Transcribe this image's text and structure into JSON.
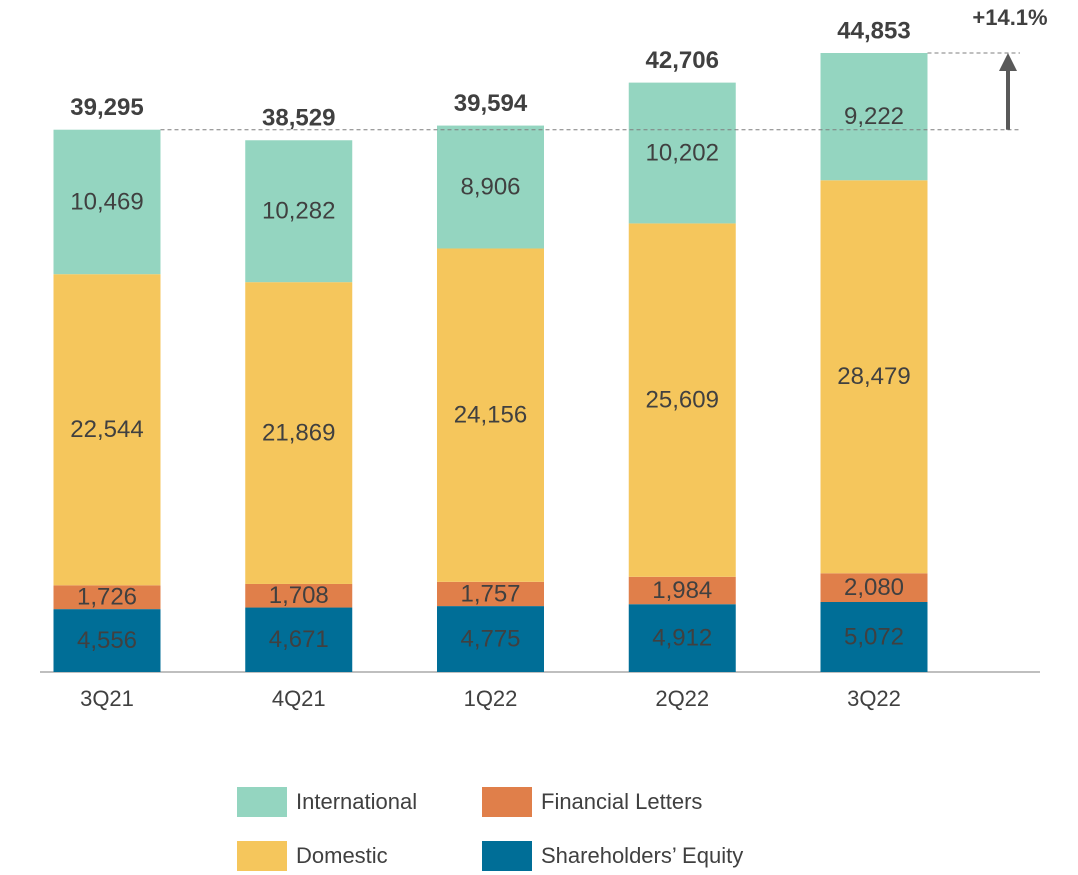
{
  "chart_data": {
    "type": "stacked_bar",
    "annotation": "+14.1%",
    "categories": [
      "3Q21",
      "4Q21",
      "1Q22",
      "2Q22",
      "3Q22"
    ],
    "series": [
      {
        "name": "Shareholders’ Equity",
        "color": "#006e97",
        "values": [
          4556,
          4671,
          4775,
          4912,
          5072
        ],
        "value_labels": [
          "4,556",
          "4,671",
          "4,775",
          "4,912",
          "5,072"
        ]
      },
      {
        "name": "Financial Letters",
        "color": "#e07f4a",
        "values": [
          1726,
          1708,
          1757,
          1984,
          2080
        ],
        "value_labels": [
          "1,726",
          "1,708",
          "1,757",
          "1,984",
          "2,080"
        ]
      },
      {
        "name": "Domestic",
        "color": "#f5c65c",
        "values": [
          22544,
          21869,
          24156,
          25609,
          28479
        ],
        "value_labels": [
          "22,544",
          "21,869",
          "24,156",
          "25,609",
          "28,479"
        ]
      },
      {
        "name": "International",
        "color": "#94d5c0",
        "values": [
          10469,
          10282,
          8906,
          10202,
          9222
        ],
        "value_labels": [
          "10,469",
          "10,282",
          "8,906",
          "10,202",
          "9,222"
        ]
      }
    ],
    "totals": [
      39295,
      38529,
      39594,
      42706,
      44853
    ],
    "total_labels": [
      "39,295",
      "38,529",
      "39,594",
      "42,706",
      "44,853"
    ]
  }
}
